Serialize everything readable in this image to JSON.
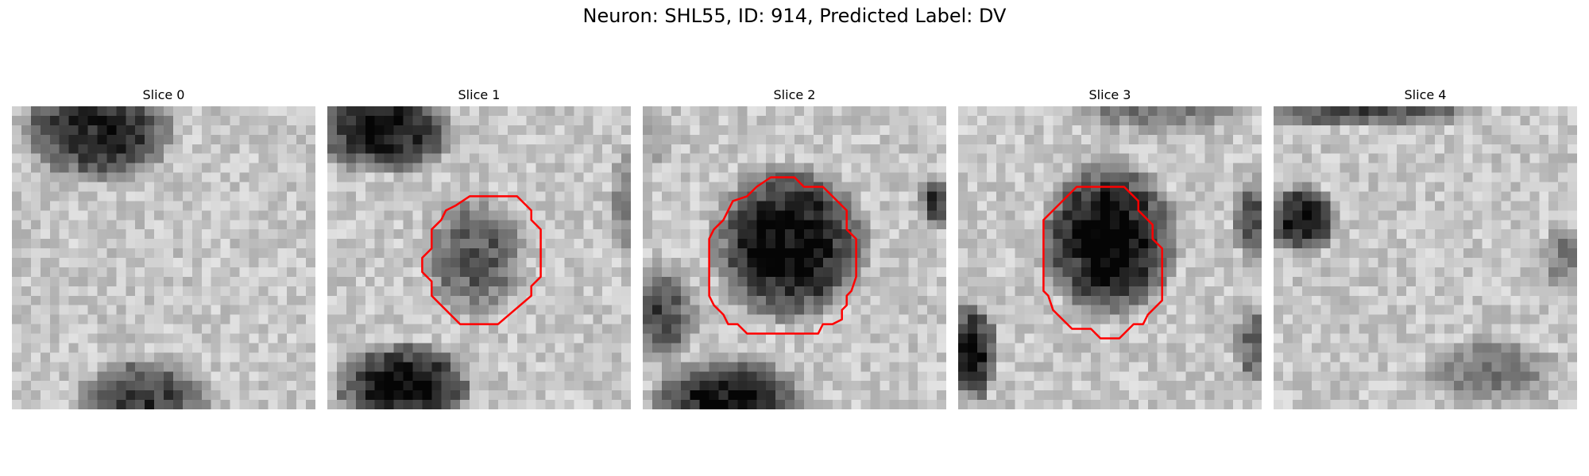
{
  "figure": {
    "title": "Neuron: SHL55, ID: 914, Predicted Label: DV"
  },
  "slices": [
    {
      "title": "Slice 0",
      "has_contour": false
    },
    {
      "title": "Slice 1",
      "has_contour": true
    },
    {
      "title": "Slice 2",
      "has_contour": true
    },
    {
      "title": "Slice 3",
      "has_contour": true
    },
    {
      "title": "Slice 4",
      "has_contour": false
    }
  ],
  "colors": {
    "contour": "#ff0000",
    "background": "#ffffff"
  },
  "colormap": "grayscale"
}
